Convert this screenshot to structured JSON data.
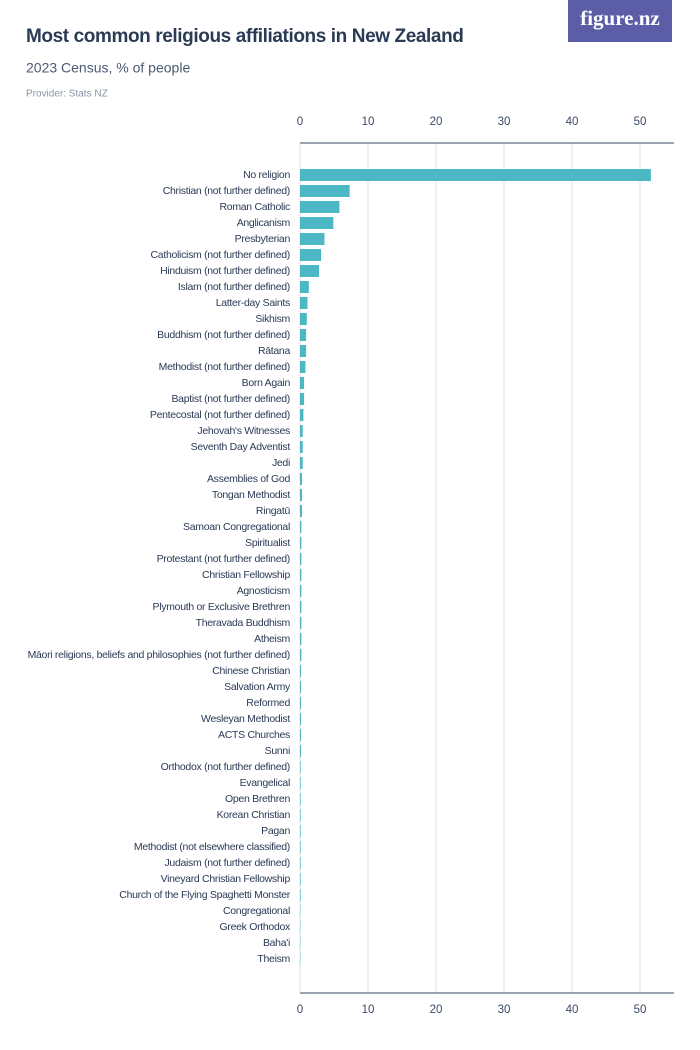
{
  "logo": "figure.nz",
  "chart_data": {
    "type": "hbar",
    "title": "Most common religious affiliations in New Zealand",
    "subtitle": "2023 Census, % of people",
    "provider": "Provider: Stats NZ",
    "color": "#4cb8c4",
    "grid": true,
    "xlim": [
      0,
      55
    ],
    "xticks": [
      0,
      10,
      20,
      30,
      40,
      50
    ],
    "categories": [
      "No religion",
      "Christian (not further defined)",
      "Roman Catholic",
      "Anglicanism",
      "Presbyterian",
      "Catholicism (not further defined)",
      "Hinduism (not further defined)",
      "Islam (not further defined)",
      "Latter-day Saints",
      "Sikhism",
      "Buddhism (not further defined)",
      "Rātana",
      "Methodist (not further defined)",
      "Born Again",
      "Baptist (not further defined)",
      "Pentecostal (not further defined)",
      "Jehovah's Witnesses",
      "Seventh Day Adventist",
      "Jedi",
      "Assemblies of God",
      "Tongan Methodist",
      "Ringatū",
      "Samoan Congregational",
      "Spiritualist",
      "Protestant (not further defined)",
      "Christian Fellowship",
      "Agnosticism",
      "Plymouth or Exclusive Brethren",
      "Theravada Buddhism",
      "Atheism",
      "Māori religions, beliefs and philosophies (not further defined)",
      "Chinese Christian",
      "Salvation Army",
      "Reformed",
      "Wesleyan Methodist",
      "ACTS Churches",
      "Sunni",
      "Orthodox (not further defined)",
      "Evangelical",
      "Open Brethren",
      "Korean Christian",
      "Pagan",
      "Methodist (not elsewhere classified)",
      "Judaism (not further defined)",
      "Vineyard Christian Fellowship",
      "Church of the Flying Spaghetti Monster",
      "Congregational",
      "Greek Orthodox",
      "Baha'i",
      "Theism"
    ],
    "values": [
      51.6,
      7.3,
      5.8,
      4.9,
      3.6,
      3.1,
      2.8,
      1.3,
      1.1,
      1.0,
      0.9,
      0.9,
      0.8,
      0.6,
      0.6,
      0.5,
      0.4,
      0.4,
      0.4,
      0.3,
      0.3,
      0.3,
      0.2,
      0.2,
      0.2,
      0.2,
      0.2,
      0.2,
      0.2,
      0.2,
      0.2,
      0.15,
      0.15,
      0.15,
      0.15,
      0.15,
      0.15,
      0.1,
      0.1,
      0.1,
      0.1,
      0.1,
      0.1,
      0.1,
      0.1,
      0.1,
      0.05,
      0.05,
      0.05,
      0.05
    ]
  }
}
